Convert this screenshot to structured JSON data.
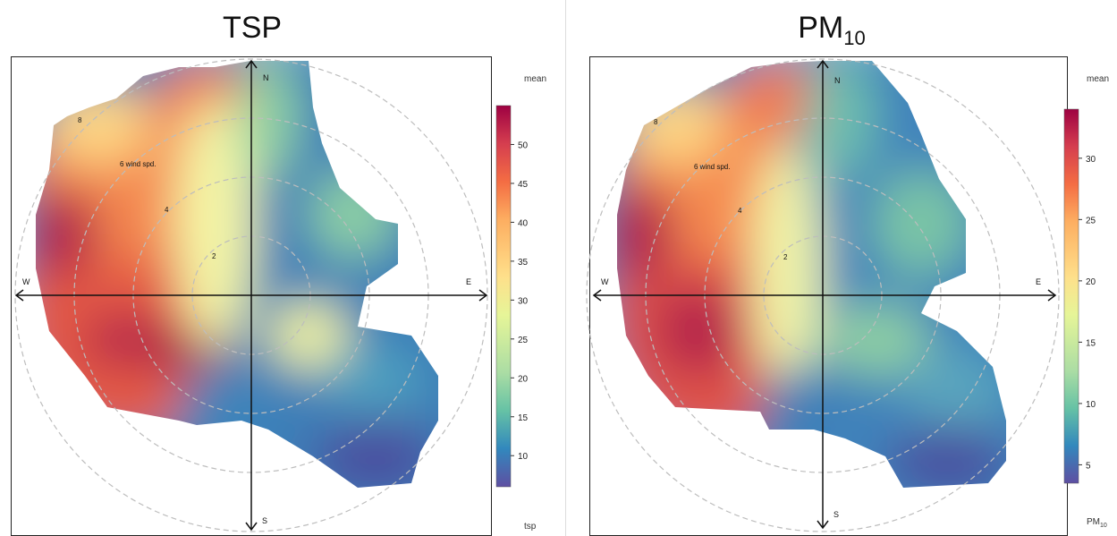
{
  "chart_data": [
    {
      "type": "heatmap",
      "subtype": "polar plot",
      "title": "TSP",
      "legend_title": "mean",
      "colorbar_caption": "tsp",
      "colorbar_range": [
        6,
        55
      ],
      "colorbar_ticks": [
        10,
        15,
        20,
        25,
        30,
        35,
        40,
        45,
        50
      ],
      "colorscale": "Spectral (blue = low, red = high)",
      "direction_labels": [
        "N",
        "E",
        "S",
        "W"
      ],
      "ring_values": [
        2,
        4,
        6,
        8
      ],
      "ring_label_6": "6 wind spd.",
      "notes": "highest concentrations in the W and SW sectors; lowest in the E and SE sectors"
    },
    {
      "type": "heatmap",
      "subtype": "polar plot",
      "title_main": "PM",
      "title_sub": "10",
      "legend_title": "mean",
      "colorbar_caption_main": "PM",
      "colorbar_caption_sub": "10",
      "colorbar_range": [
        3.5,
        34
      ],
      "colorbar_ticks": [
        5,
        10,
        15,
        20,
        25,
        30
      ],
      "colorscale": "Spectral (blue = low, red = high)",
      "direction_labels": [
        "N",
        "E",
        "S",
        "W"
      ],
      "ring_values": [
        2,
        4,
        6,
        8
      ],
      "ring_label_6": "6 wind spd.",
      "notes": "highest concentrations in the W sector; lowest in the E and SE sectors"
    }
  ]
}
